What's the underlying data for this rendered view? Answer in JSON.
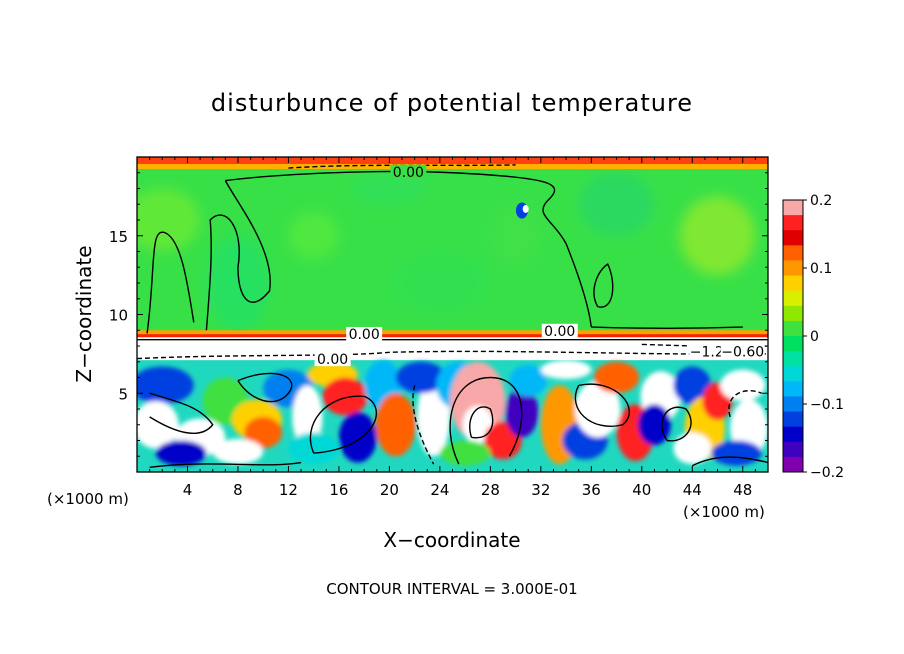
{
  "chart_data": {
    "type": "heatmap",
    "title": "disturbunce of potential temperature",
    "xlabel": "X−coordinate",
    "ylabel": "Z−coordinate",
    "x_unit": "(×1000 m)",
    "footer": "CONTOUR INTERVAL = 3.000E-01",
    "xlim": [
      0,
      50
    ],
    "ylim": [
      0,
      20
    ],
    "x_ticks": [
      4,
      8,
      12,
      16,
      20,
      24,
      28,
      32,
      36,
      40,
      44,
      48
    ],
    "y_ticks": [
      5,
      10,
      15
    ],
    "colorbar": {
      "ticks": [
        0.2,
        0.1,
        0,
        -0.1,
        -0.2
      ],
      "tick_labels": [
        "0.2",
        "0.1",
        "0",
        "−0.1",
        "−0.2"
      ],
      "range": [
        -0.2,
        0.2
      ],
      "colors": [
        "#f8a8a8",
        "#ff2020",
        "#e00000",
        "#ff6000",
        "#ff9800",
        "#ffd000",
        "#d8f000",
        "#90e800",
        "#40e040",
        "#00e060",
        "#00e0a0",
        "#00d8d8",
        "#00b8f8",
        "#0080f0",
        "#0040e0",
        "#0000c8",
        "#4000c0",
        "#8000b0"
      ]
    },
    "contour_labels": [
      {
        "text": "0.00",
        "x": 21.5,
        "z": 19.0
      },
      {
        "text": "0.00",
        "x": 18.0,
        "z": 8.7
      },
      {
        "text": "0.00",
        "x": 33.5,
        "z": 8.9
      },
      {
        "text": "0.00",
        "x": 15.5,
        "z": 7.1
      },
      {
        "text": "−1.20",
        "x": 45.5,
        "z": 7.6
      },
      {
        "text": "−0.60",
        "x": 48.0,
        "z": 7.6
      }
    ],
    "grid": false,
    "legend": "colorbar right"
  }
}
